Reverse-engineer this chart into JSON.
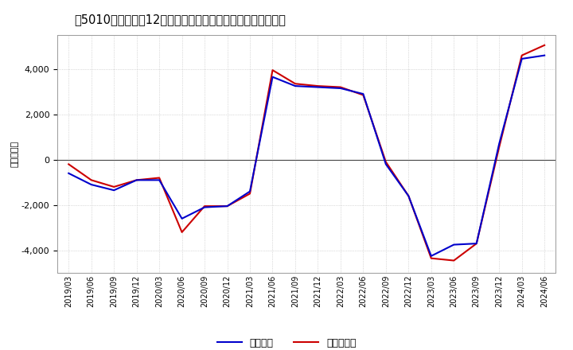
{
  "title_prefix": "[5010]",
  "title_suffix": "利益の12か月移動合計の対前年同期増減額の推移",
  "ylabel": "（百万円）",
  "background_color": "#ffffff",
  "plot_bg_color": "#ffffff",
  "grid_color": "#aaaaaa",
  "line_color_keijo": "#0000cc",
  "line_color_touki": "#cc0000",
  "legend_keijo": "経常利益",
  "legend_touki": "当期純利益",
  "ylim": [
    -5000,
    5500
  ],
  "yticks": [
    -4000,
    -2000,
    0,
    2000,
    4000
  ],
  "dates": [
    "2019/03",
    "2019/06",
    "2019/09",
    "2019/12",
    "2020/03",
    "2020/06",
    "2020/09",
    "2020/12",
    "2021/03",
    "2021/06",
    "2021/09",
    "2021/12",
    "2022/03",
    "2022/06",
    "2022/09",
    "2022/12",
    "2023/03",
    "2023/06",
    "2023/09",
    "2023/12",
    "2024/03",
    "2024/06"
  ],
  "keijo": [
    -600,
    -1100,
    -1350,
    -900,
    -900,
    -2600,
    -2100,
    -2050,
    -1400,
    3650,
    3250,
    3200,
    3150,
    2900,
    -200,
    -1600,
    -4250,
    -3750,
    -3700,
    700,
    4450,
    4600
  ],
  "touki": [
    -200,
    -900,
    -1200,
    -900,
    -800,
    -3200,
    -2050,
    -2050,
    -1500,
    3950,
    3350,
    3250,
    3200,
    2850,
    -100,
    -1600,
    -4350,
    -4450,
    -3700,
    550,
    4600,
    5050
  ]
}
